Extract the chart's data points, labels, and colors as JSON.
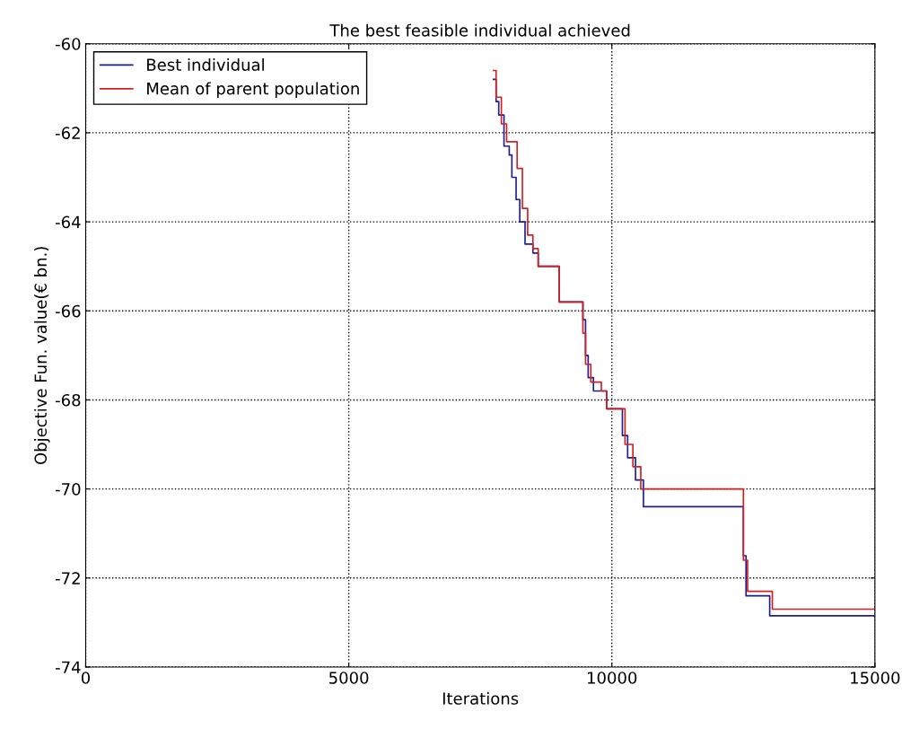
{
  "chart_data": {
    "type": "step",
    "title": "The best feasible individual achieved",
    "xlabel": "Iterations",
    "ylabel": "Objective Fun. value(€ bn.)",
    "xlim": [
      0,
      15000
    ],
    "xticks": [
      0,
      5000,
      10000,
      15000
    ],
    "ylim": [
      -74,
      -60
    ],
    "yticks": [
      -74,
      -72,
      -70,
      -68,
      -66,
      -64,
      -62,
      -60
    ],
    "grid": true,
    "legend": "top left",
    "line_style": "solid",
    "marker": "none",
    "series": [
      {
        "name": "Best individual",
        "color": "#1f1f8f",
        "x": [
          7750,
          7800,
          7850,
          7950,
          8050,
          8100,
          8180,
          8250,
          8350,
          8500,
          8600,
          9000,
          9450,
          9500,
          9550,
          9650,
          9900,
          10200,
          10300,
          10450,
          10600,
          12500,
          12550,
          13000,
          15000
        ],
        "values": [
          -60.8,
          -61.3,
          -61.6,
          -62.3,
          -62.5,
          -63.0,
          -63.5,
          -64.0,
          -64.5,
          -64.7,
          -65.0,
          -65.8,
          -66.2,
          -67.0,
          -67.5,
          -67.8,
          -68.2,
          -68.8,
          -69.3,
          -69.8,
          -70.4,
          -71.5,
          -72.4,
          -72.85,
          -72.85
        ]
      },
      {
        "name": "Mean of parent population",
        "color": "#d42020",
        "x": [
          7750,
          7800,
          7900,
          8000,
          8200,
          8300,
          8400,
          8500,
          8600,
          9000,
          9450,
          9500,
          9600,
          9800,
          9900,
          10250,
          10400,
          10550,
          12500,
          12580,
          13050,
          15000
        ],
        "values": [
          -60.6,
          -61.2,
          -61.8,
          -62.2,
          -62.8,
          -63.7,
          -64.3,
          -64.6,
          -65.0,
          -65.8,
          -66.5,
          -67.2,
          -67.6,
          -67.8,
          -68.2,
          -69.0,
          -69.5,
          -70.0,
          -71.6,
          -72.3,
          -72.7,
          -72.7
        ]
      }
    ]
  }
}
